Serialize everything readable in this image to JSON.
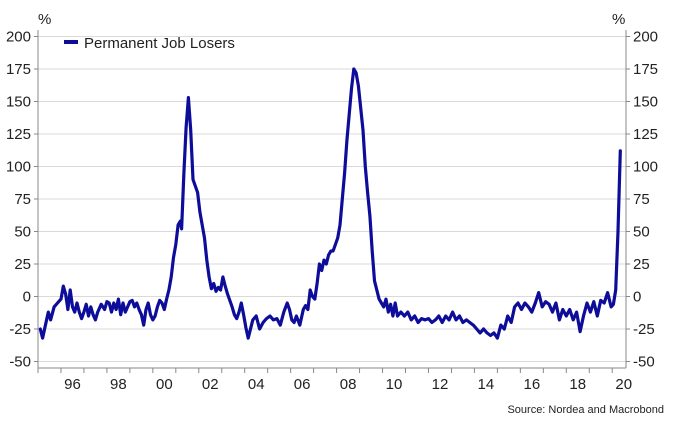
{
  "chart_data": {
    "type": "line",
    "y_unit_left": "%",
    "y_unit_right": "%",
    "source": "Source: Nordea and Macrobond",
    "ylim": [
      -55,
      205
    ],
    "y_ticks": [
      -50,
      -25,
      0,
      25,
      50,
      75,
      100,
      125,
      150,
      175,
      200
    ],
    "xlim": [
      1995.0,
      2020.6
    ],
    "x_ticks": [
      {
        "value": 1996,
        "label": "96"
      },
      {
        "value": 1998,
        "label": "98"
      },
      {
        "value": 2000,
        "label": "00"
      },
      {
        "value": 2002,
        "label": "02"
      },
      {
        "value": 2004,
        "label": "04"
      },
      {
        "value": 2006,
        "label": "06"
      },
      {
        "value": 2008,
        "label": "08"
      },
      {
        "value": 2010,
        "label": "10"
      },
      {
        "value": 2012,
        "label": "12"
      },
      {
        "value": 2014,
        "label": "14"
      },
      {
        "value": 2016,
        "label": "16"
      },
      {
        "value": 2018,
        "label": "18"
      },
      {
        "value": 2020,
        "label": "20"
      }
    ],
    "grid": "horizontal",
    "legend_position": "top-left",
    "series": [
      {
        "name": "Permanent Job Losers",
        "color": "#0d0d9a",
        "points": [
          [
            1995.1,
            -25
          ],
          [
            1995.2,
            -32
          ],
          [
            1995.35,
            -20
          ],
          [
            1995.45,
            -12
          ],
          [
            1995.55,
            -18
          ],
          [
            1995.7,
            -8
          ],
          [
            1995.85,
            -5
          ],
          [
            1996.0,
            -2
          ],
          [
            1996.1,
            8
          ],
          [
            1996.2,
            2
          ],
          [
            1996.3,
            -10
          ],
          [
            1996.4,
            5
          ],
          [
            1996.5,
            -8
          ],
          [
            1996.6,
            -12
          ],
          [
            1996.7,
            -5
          ],
          [
            1996.8,
            -12
          ],
          [
            1996.9,
            -17
          ],
          [
            1997.0,
            -12
          ],
          [
            1997.1,
            -6
          ],
          [
            1997.2,
            -15
          ],
          [
            1997.3,
            -8
          ],
          [
            1997.4,
            -14
          ],
          [
            1997.5,
            -18
          ],
          [
            1997.6,
            -12
          ],
          [
            1997.75,
            -6
          ],
          [
            1997.9,
            -10
          ],
          [
            1998.0,
            -4
          ],
          [
            1998.1,
            -5
          ],
          [
            1998.2,
            -12
          ],
          [
            1998.3,
            -5
          ],
          [
            1998.4,
            -10
          ],
          [
            1998.5,
            -2
          ],
          [
            1998.6,
            -14
          ],
          [
            1998.7,
            -5
          ],
          [
            1998.8,
            -12
          ],
          [
            1998.9,
            -8
          ],
          [
            1999.0,
            -4
          ],
          [
            1999.1,
            -3
          ],
          [
            1999.2,
            -8
          ],
          [
            1999.3,
            -5
          ],
          [
            1999.4,
            -10
          ],
          [
            1999.5,
            -14
          ],
          [
            1999.6,
            -22
          ],
          [
            1999.7,
            -10
          ],
          [
            1999.8,
            -5
          ],
          [
            1999.9,
            -14
          ],
          [
            2000.0,
            -18
          ],
          [
            2000.1,
            -15
          ],
          [
            2000.2,
            -8
          ],
          [
            2000.3,
            -3
          ],
          [
            2000.4,
            -5
          ],
          [
            2000.5,
            -10
          ],
          [
            2000.6,
            -2
          ],
          [
            2000.7,
            5
          ],
          [
            2000.8,
            15
          ],
          [
            2000.9,
            30
          ],
          [
            2001.0,
            40
          ],
          [
            2001.1,
            55
          ],
          [
            2001.2,
            58
          ],
          [
            2001.25,
            52
          ],
          [
            2001.35,
            95
          ],
          [
            2001.45,
            130
          ],
          [
            2001.55,
            153
          ],
          [
            2001.65,
            128
          ],
          [
            2001.75,
            90
          ],
          [
            2001.85,
            85
          ],
          [
            2001.95,
            80
          ],
          [
            2002.05,
            65
          ],
          [
            2002.15,
            55
          ],
          [
            2002.25,
            45
          ],
          [
            2002.35,
            28
          ],
          [
            2002.45,
            15
          ],
          [
            2002.55,
            6
          ],
          [
            2002.65,
            10
          ],
          [
            2002.75,
            4
          ],
          [
            2002.85,
            7
          ],
          [
            2002.95,
            5
          ],
          [
            2003.05,
            15
          ],
          [
            2003.15,
            8
          ],
          [
            2003.25,
            2
          ],
          [
            2003.35,
            -3
          ],
          [
            2003.45,
            -8
          ],
          [
            2003.55,
            -14
          ],
          [
            2003.65,
            -17
          ],
          [
            2003.75,
            -12
          ],
          [
            2003.85,
            -5
          ],
          [
            2003.95,
            -14
          ],
          [
            2004.05,
            -24
          ],
          [
            2004.15,
            -32
          ],
          [
            2004.25,
            -25
          ],
          [
            2004.35,
            -18
          ],
          [
            2004.5,
            -15
          ],
          [
            2004.65,
            -25
          ],
          [
            2004.8,
            -20
          ],
          [
            2004.95,
            -17
          ],
          [
            2005.1,
            -15
          ],
          [
            2005.25,
            -18
          ],
          [
            2005.4,
            -17
          ],
          [
            2005.55,
            -22
          ],
          [
            2005.7,
            -12
          ],
          [
            2005.85,
            -5
          ],
          [
            2005.95,
            -10
          ],
          [
            2006.05,
            -18
          ],
          [
            2006.15,
            -20
          ],
          [
            2006.25,
            -15
          ],
          [
            2006.4,
            -22
          ],
          [
            2006.55,
            -10
          ],
          [
            2006.65,
            -7
          ],
          [
            2006.75,
            -10
          ],
          [
            2006.85,
            5
          ],
          [
            2006.95,
            0
          ],
          [
            2007.05,
            -2
          ],
          [
            2007.15,
            10
          ],
          [
            2007.25,
            25
          ],
          [
            2007.35,
            20
          ],
          [
            2007.45,
            28
          ],
          [
            2007.55,
            25
          ],
          [
            2007.65,
            32
          ],
          [
            2007.75,
            35
          ],
          [
            2007.85,
            35
          ],
          [
            2007.95,
            40
          ],
          [
            2008.05,
            45
          ],
          [
            2008.15,
            55
          ],
          [
            2008.25,
            75
          ],
          [
            2008.35,
            95
          ],
          [
            2008.45,
            120
          ],
          [
            2008.55,
            140
          ],
          [
            2008.65,
            160
          ],
          [
            2008.75,
            175
          ],
          [
            2008.85,
            172
          ],
          [
            2008.95,
            162
          ],
          [
            2009.05,
            145
          ],
          [
            2009.15,
            128
          ],
          [
            2009.25,
            100
          ],
          [
            2009.35,
            80
          ],
          [
            2009.45,
            62
          ],
          [
            2009.55,
            35
          ],
          [
            2009.65,
            12
          ],
          [
            2009.75,
            5
          ],
          [
            2009.85,
            -2
          ],
          [
            2009.95,
            -5
          ],
          [
            2010.05,
            -8
          ],
          [
            2010.15,
            -2
          ],
          [
            2010.25,
            -12
          ],
          [
            2010.35,
            -6
          ],
          [
            2010.45,
            -15
          ],
          [
            2010.55,
            -5
          ],
          [
            2010.65,
            -15
          ],
          [
            2010.8,
            -12
          ],
          [
            2010.95,
            -15
          ],
          [
            2011.1,
            -12
          ],
          [
            2011.25,
            -18
          ],
          [
            2011.4,
            -15
          ],
          [
            2011.55,
            -20
          ],
          [
            2011.7,
            -17
          ],
          [
            2011.85,
            -18
          ],
          [
            2012.0,
            -17
          ],
          [
            2012.15,
            -20
          ],
          [
            2012.3,
            -18
          ],
          [
            2012.45,
            -15
          ],
          [
            2012.6,
            -20
          ],
          [
            2012.75,
            -15
          ],
          [
            2012.9,
            -18
          ],
          [
            2013.05,
            -12
          ],
          [
            2013.2,
            -18
          ],
          [
            2013.35,
            -15
          ],
          [
            2013.5,
            -20
          ],
          [
            2013.65,
            -18
          ],
          [
            2013.8,
            -20
          ],
          [
            2013.95,
            -22
          ],
          [
            2014.1,
            -25
          ],
          [
            2014.25,
            -28
          ],
          [
            2014.4,
            -25
          ],
          [
            2014.55,
            -28
          ],
          [
            2014.7,
            -30
          ],
          [
            2014.85,
            -28
          ],
          [
            2015.0,
            -32
          ],
          [
            2015.15,
            -22
          ],
          [
            2015.3,
            -25
          ],
          [
            2015.45,
            -15
          ],
          [
            2015.6,
            -20
          ],
          [
            2015.75,
            -8
          ],
          [
            2015.9,
            -5
          ],
          [
            2016.05,
            -10
          ],
          [
            2016.2,
            -5
          ],
          [
            2016.35,
            -8
          ],
          [
            2016.5,
            -12
          ],
          [
            2016.65,
            -5
          ],
          [
            2016.8,
            3
          ],
          [
            2016.95,
            -8
          ],
          [
            2017.1,
            -4
          ],
          [
            2017.25,
            -6
          ],
          [
            2017.4,
            -12
          ],
          [
            2017.55,
            -5
          ],
          [
            2017.7,
            -18
          ],
          [
            2017.85,
            -10
          ],
          [
            2018.0,
            -15
          ],
          [
            2018.15,
            -10
          ],
          [
            2018.3,
            -18
          ],
          [
            2018.45,
            -12
          ],
          [
            2018.6,
            -27
          ],
          [
            2018.75,
            -15
          ],
          [
            2018.9,
            -5
          ],
          [
            2019.05,
            -12
          ],
          [
            2019.2,
            -4
          ],
          [
            2019.35,
            -15
          ],
          [
            2019.5,
            -3
          ],
          [
            2019.65,
            -5
          ],
          [
            2019.8,
            3
          ],
          [
            2019.95,
            -8
          ],
          [
            2020.05,
            -6
          ],
          [
            2020.15,
            5
          ],
          [
            2020.25,
            50
          ],
          [
            2020.35,
            112
          ]
        ]
      }
    ]
  }
}
